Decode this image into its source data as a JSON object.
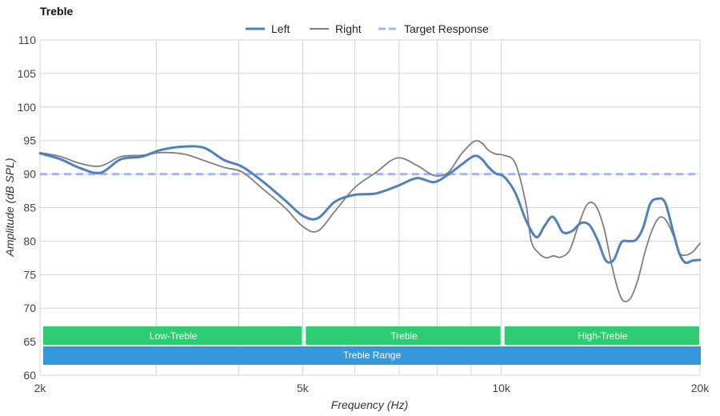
{
  "chart_data": {
    "type": "line",
    "title": "Treble",
    "xlabel": "Frequency (Hz)",
    "ylabel": "Amplitude (dB SPL)",
    "x_scale": "log",
    "xlim": [
      2000,
      20000
    ],
    "ylim": [
      60,
      110
    ],
    "x_ticks": [
      {
        "value": 2000,
        "label": "2k"
      },
      {
        "value": 5000,
        "label": "5k"
      },
      {
        "value": 10000,
        "label": "10k"
      },
      {
        "value": 20000,
        "label": "20k"
      }
    ],
    "x_gridlines": [
      2000,
      3000,
      4000,
      5000,
      6000,
      7000,
      8000,
      9000,
      10000,
      20000
    ],
    "y_ticks": [
      60,
      65,
      70,
      75,
      80,
      85,
      90,
      95,
      100,
      105,
      110
    ],
    "grid": true,
    "legend_position": "top-center",
    "series": [
      {
        "name": "Left",
        "color": "#4f81bd",
        "style": "solid-thick",
        "x": [
          2000,
          2150,
          2300,
          2470,
          2650,
          2850,
          3050,
          3300,
          3550,
          3800,
          4050,
          4350,
          4700,
          5000,
          5270,
          5600,
          6000,
          6450,
          6950,
          7450,
          7900,
          8300,
          8700,
          9100,
          9350,
          9550,
          9800,
          10100,
          10500,
          10900,
          11300,
          11600,
          11900,
          12100,
          12400,
          12800,
          13200,
          13600,
          14000,
          14400,
          14800,
          15200,
          15600,
          16000,
          16400,
          16800,
          17200,
          17700,
          18200,
          18600,
          19000,
          19500,
          20000
        ],
        "y": [
          93.1,
          92.2,
          90.9,
          90.2,
          92.2,
          92.6,
          93.6,
          94.1,
          93.9,
          92.1,
          91.1,
          88.9,
          86.1,
          83.8,
          83.4,
          85.9,
          86.9,
          87.1,
          88.2,
          89.4,
          88.8,
          89.9,
          91.4,
          92.7,
          92.2,
          91.1,
          90.1,
          89.6,
          87.2,
          83.1,
          80.6,
          82.1,
          83.6,
          83.1,
          81.3,
          81.5,
          82.7,
          82.4,
          80.1,
          77.1,
          77.2,
          79.8,
          80.0,
          80.2,
          82.0,
          85.5,
          86.3,
          85.8,
          81.5,
          78.2,
          76.8,
          77.1,
          77.2
        ]
      },
      {
        "name": "Right",
        "color": "#7f7f7f",
        "style": "solid-thin",
        "x": [
          2000,
          2150,
          2300,
          2470,
          2650,
          2850,
          3050,
          3300,
          3550,
          3800,
          4050,
          4350,
          4700,
          5000,
          5270,
          5600,
          6000,
          6450,
          6950,
          7450,
          7900,
          8300,
          8700,
          9100,
          9350,
          9550,
          9800,
          10100,
          10500,
          10900,
          11100,
          11400,
          11700,
          12000,
          12300,
          12700,
          13100,
          13500,
          13900,
          14300,
          14700,
          15000,
          15300,
          15700,
          16100,
          16500,
          16900,
          17300,
          17700,
          18200,
          18600,
          19000,
          19500,
          20000
        ],
        "y": [
          93.2,
          92.6,
          91.6,
          91.2,
          92.6,
          92.8,
          93.2,
          93.0,
          92.0,
          91.0,
          90.3,
          87.8,
          85.0,
          82.2,
          81.5,
          84.5,
          88.0,
          90.2,
          92.4,
          91.3,
          89.8,
          90.2,
          93.0,
          94.9,
          94.6,
          93.6,
          93.0,
          92.8,
          91.6,
          85.5,
          80.0,
          78.2,
          77.5,
          77.8,
          77.6,
          78.7,
          82.5,
          85.5,
          85.3,
          82.0,
          76.4,
          73.0,
          71.1,
          71.5,
          74.2,
          78.3,
          81.5,
          83.4,
          83.3,
          81.0,
          78.3,
          77.9,
          78.4,
          79.7
        ]
      },
      {
        "name": "Target Response",
        "color": "#a4b8f4",
        "style": "dashed",
        "x": [
          2000,
          20000
        ],
        "y": [
          90,
          90
        ]
      }
    ],
    "bands": [
      {
        "label": "Low-Treble",
        "from": 2000,
        "to": 5000,
        "color": "#2ecc71"
      },
      {
        "label": "Treble",
        "from": 5000,
        "to": 10000,
        "color": "#2ecc71"
      },
      {
        "label": "High-Treble",
        "from": 10000,
        "to": 20000,
        "color": "#2ecc71"
      },
      {
        "label": "Treble Range",
        "from": 2000,
        "to": 20000,
        "color": "#3498db"
      }
    ]
  }
}
